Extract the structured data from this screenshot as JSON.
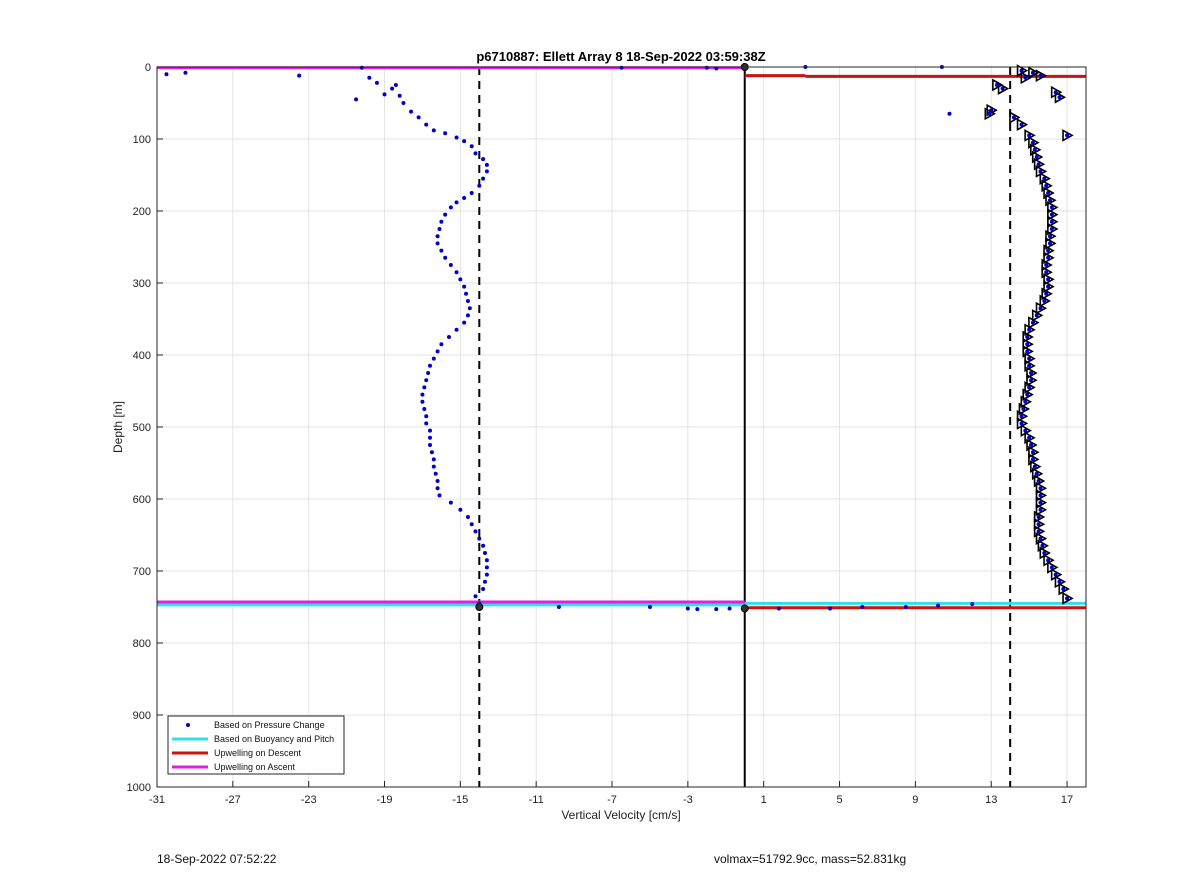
{
  "chart_data": {
    "type": "scatter",
    "title": "p6710887: Ellett Array 8 18-Sep-2022 03:59:38Z",
    "xlabel": "Vertical Velocity [cm/s]",
    "ylabel": "Depth [m]",
    "xlim": [
      -31,
      18
    ],
    "ylim": [
      0,
      1000
    ],
    "y_reversed": true,
    "x_ticks": [
      -31,
      -27,
      -23,
      -19,
      -15,
      -11,
      -7,
      -3,
      1,
      5,
      9,
      13,
      17
    ],
    "y_ticks": [
      0,
      100,
      200,
      300,
      400,
      500,
      600,
      700,
      800,
      900,
      1000
    ],
    "grid": true,
    "legend_position": "bottom-left",
    "colors": {
      "pressure": "#0000cc",
      "buoyancy": "#33e0e8",
      "descent": "#cc1111",
      "ascent": "#dd22dd",
      "marker": "#000000"
    },
    "series": [
      {
        "name": "Based on Pressure Change",
        "marker": "dot",
        "descent_profile": [
          [
            -30.5,
            10
          ],
          [
            -29.5,
            8
          ],
          [
            -23.5,
            12
          ],
          [
            -20.2,
            1
          ],
          [
            -20.5,
            45
          ],
          [
            -19.8,
            15
          ],
          [
            -19.4,
            22
          ],
          [
            -19.0,
            38
          ],
          [
            -18.6,
            30
          ],
          [
            -18.4,
            25
          ],
          [
            -18.2,
            40
          ],
          [
            -18.0,
            50
          ],
          [
            -17.6,
            62
          ],
          [
            -17.2,
            70
          ],
          [
            -16.8,
            80
          ],
          [
            -16.4,
            88
          ],
          [
            -15.8,
            92
          ],
          [
            -15.2,
            98
          ],
          [
            -14.8,
            103
          ],
          [
            -14.4,
            110
          ],
          [
            -14.2,
            120
          ],
          [
            -13.8,
            128
          ],
          [
            -13.6,
            136
          ],
          [
            -13.6,
            145
          ],
          [
            -13.8,
            155
          ],
          [
            -14.0,
            165
          ],
          [
            -14.4,
            175
          ],
          [
            -14.8,
            182
          ],
          [
            -15.2,
            188
          ],
          [
            -15.5,
            195
          ],
          [
            -15.8,
            205
          ],
          [
            -16.0,
            215
          ],
          [
            -16.1,
            225
          ],
          [
            -16.2,
            235
          ],
          [
            -16.2,
            245
          ],
          [
            -16.0,
            255
          ],
          [
            -15.8,
            265
          ],
          [
            -15.5,
            275
          ],
          [
            -15.2,
            285
          ],
          [
            -15.0,
            295
          ],
          [
            -14.8,
            305
          ],
          [
            -14.7,
            315
          ],
          [
            -14.6,
            325
          ],
          [
            -14.5,
            335
          ],
          [
            -14.6,
            345
          ],
          [
            -14.8,
            355
          ],
          [
            -15.2,
            365
          ],
          [
            -15.6,
            375
          ],
          [
            -16.0,
            385
          ],
          [
            -16.2,
            395
          ],
          [
            -16.4,
            405
          ],
          [
            -16.6,
            415
          ],
          [
            -16.7,
            425
          ],
          [
            -16.8,
            435
          ],
          [
            -16.9,
            445
          ],
          [
            -17.0,
            455
          ],
          [
            -17.0,
            465
          ],
          [
            -16.9,
            475
          ],
          [
            -16.8,
            485
          ],
          [
            -16.8,
            495
          ],
          [
            -16.6,
            505
          ],
          [
            -16.6,
            515
          ],
          [
            -16.6,
            525
          ],
          [
            -16.5,
            535
          ],
          [
            -16.4,
            545
          ],
          [
            -16.4,
            555
          ],
          [
            -16.3,
            565
          ],
          [
            -16.2,
            575
          ],
          [
            -16.2,
            585
          ],
          [
            -16.1,
            595
          ],
          [
            -15.5,
            605
          ],
          [
            -15.0,
            615
          ],
          [
            -14.6,
            625
          ],
          [
            -14.4,
            635
          ],
          [
            -14.2,
            645
          ],
          [
            -14.0,
            655
          ],
          [
            -13.8,
            665
          ],
          [
            -13.7,
            675
          ],
          [
            -13.6,
            685
          ],
          [
            -13.6,
            695
          ],
          [
            -13.6,
            705
          ],
          [
            -13.7,
            715
          ],
          [
            -13.8,
            725
          ],
          [
            -14.2,
            735
          ],
          [
            -14.0,
            745
          ],
          [
            -14.0,
            750
          ]
        ],
        "ascent_profile": [
          [
            13.0,
            60
          ],
          [
            12.9,
            65
          ],
          [
            13.3,
            25
          ],
          [
            13.6,
            30
          ],
          [
            14.2,
            70
          ],
          [
            14.6,
            80
          ],
          [
            15.0,
            95
          ],
          [
            15.2,
            105
          ],
          [
            15.3,
            115
          ],
          [
            15.4,
            125
          ],
          [
            15.5,
            135
          ],
          [
            15.6,
            145
          ],
          [
            15.8,
            155
          ],
          [
            15.9,
            165
          ],
          [
            16.0,
            175
          ],
          [
            16.1,
            185
          ],
          [
            16.2,
            195
          ],
          [
            16.2,
            205
          ],
          [
            16.2,
            215
          ],
          [
            16.2,
            225
          ],
          [
            16.1,
            235
          ],
          [
            16.1,
            245
          ],
          [
            16.0,
            255
          ],
          [
            16.0,
            265
          ],
          [
            15.9,
            275
          ],
          [
            15.9,
            285
          ],
          [
            16.0,
            295
          ],
          [
            16.0,
            305
          ],
          [
            15.9,
            315
          ],
          [
            15.8,
            325
          ],
          [
            15.6,
            335
          ],
          [
            15.4,
            345
          ],
          [
            15.2,
            355
          ],
          [
            15.0,
            365
          ],
          [
            14.9,
            375
          ],
          [
            14.9,
            385
          ],
          [
            14.9,
            395
          ],
          [
            15.0,
            405
          ],
          [
            15.0,
            415
          ],
          [
            15.1,
            425
          ],
          [
            15.1,
            435
          ],
          [
            15.0,
            445
          ],
          [
            14.9,
            455
          ],
          [
            14.8,
            465
          ],
          [
            14.7,
            475
          ],
          [
            14.6,
            485
          ],
          [
            14.6,
            495
          ],
          [
            14.8,
            505
          ],
          [
            15.0,
            515
          ],
          [
            15.1,
            525
          ],
          [
            15.2,
            535
          ],
          [
            15.2,
            545
          ],
          [
            15.3,
            555
          ],
          [
            15.4,
            565
          ],
          [
            15.5,
            575
          ],
          [
            15.6,
            585
          ],
          [
            15.6,
            595
          ],
          [
            15.6,
            605
          ],
          [
            15.6,
            615
          ],
          [
            15.5,
            625
          ],
          [
            15.5,
            635
          ],
          [
            15.5,
            645
          ],
          [
            15.6,
            655
          ],
          [
            15.7,
            665
          ],
          [
            15.8,
            675
          ],
          [
            16.0,
            685
          ],
          [
            16.2,
            695
          ],
          [
            16.4,
            705
          ],
          [
            16.6,
            715
          ],
          [
            16.8,
            725
          ],
          [
            17.0,
            738
          ],
          [
            14.8,
            15
          ],
          [
            15.2,
            8
          ],
          [
            15.6,
            12
          ],
          [
            16.4,
            35
          ],
          [
            16.6,
            42
          ],
          [
            17.0,
            95
          ],
          [
            14.6,
            5
          ]
        ],
        "outliers": [
          [
            -6.5,
            1
          ],
          [
            -2.0,
            1
          ],
          [
            -1.5,
            2
          ],
          [
            3.2,
            0
          ],
          [
            10.4,
            0
          ],
          [
            10.8,
            65
          ],
          [
            -9.8,
            750
          ],
          [
            -5.0,
            750
          ],
          [
            -3.0,
            752
          ],
          [
            -2.5,
            753
          ],
          [
            -1.5,
            753
          ],
          [
            -0.8,
            752
          ],
          [
            1.8,
            752
          ],
          [
            4.5,
            752
          ],
          [
            6.2,
            750
          ],
          [
            8.5,
            750
          ],
          [
            10.2,
            748
          ],
          [
            12.0,
            746
          ]
        ]
      },
      {
        "name": "Based on Buoyancy and Pitch",
        "segments": [
          {
            "x": [
              -31,
              0
            ],
            "y": 747
          },
          {
            "x": [
              0,
              18
            ],
            "y": 745
          }
        ]
      },
      {
        "name": "Upwelling on Descent",
        "segments": [
          {
            "x": [
              0,
              3.2
            ],
            "y": 12
          },
          {
            "x": [
              3.2,
              18
            ],
            "y": 13
          },
          {
            "x": [
              0,
              18
            ],
            "y": 751
          }
        ]
      },
      {
        "name": "Upwelling on Ascent",
        "segments": [
          {
            "x": [
              -31,
              0
            ],
            "y": 1
          },
          {
            "x": [
              -31,
              0
            ],
            "y": 743
          }
        ]
      }
    ],
    "reference_lines": [
      {
        "x": -14,
        "style": "dashed"
      },
      {
        "x": 0,
        "style": "solid"
      },
      {
        "x": 14,
        "style": "dashed"
      }
    ],
    "legend": [
      {
        "label": "Based on Pressure Change",
        "kind": "dot",
        "color": "#0000cc"
      },
      {
        "label": "Based on Buoyancy and Pitch",
        "kind": "line",
        "color": "#33e0e8"
      },
      {
        "label": "Upwelling on Descent",
        "kind": "line",
        "color": "#cc1111"
      },
      {
        "label": "Upwelling on Ascent",
        "kind": "line",
        "color": "#dd22dd"
      }
    ]
  },
  "footer": {
    "timestamp": "18-Sep-2022 07:52:22",
    "volume_mass": "volmax=51792.9cc, mass=52.831kg"
  }
}
